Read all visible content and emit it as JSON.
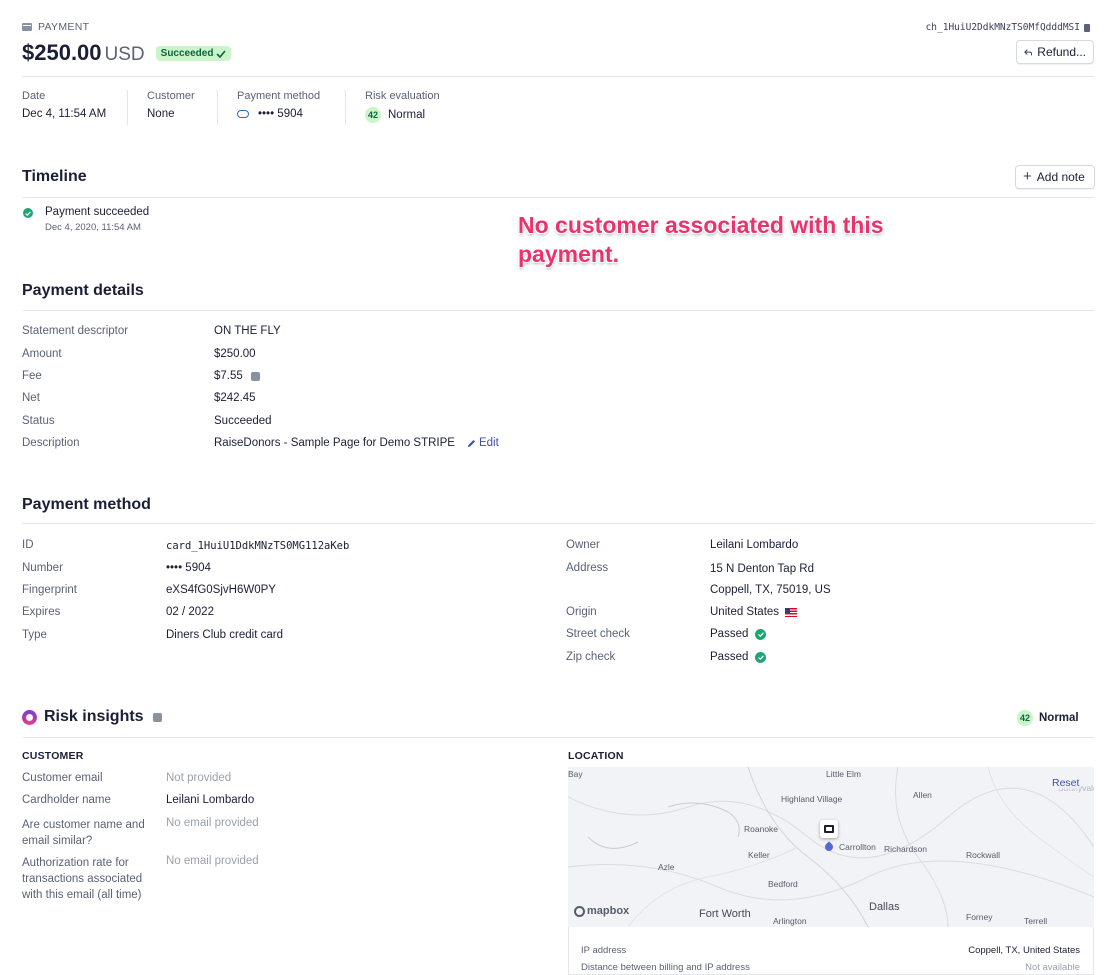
{
  "header": {
    "kicker": "PAYMENT",
    "amount": "$250.00",
    "currency": "USD",
    "status_badge": "Succeeded",
    "charge_id": "ch_1HuiU2DdkMNzTS0MfQdddMSI",
    "refund_label": "Refund..."
  },
  "summary": {
    "date": {
      "label": "Date",
      "value": "Dec 4, 11:54 AM"
    },
    "customer": {
      "label": "Customer",
      "value": "None"
    },
    "payment_method": {
      "label": "Payment method",
      "value": "•••• 5904"
    },
    "risk": {
      "label": "Risk evaluation",
      "score": "42",
      "value": "Normal"
    }
  },
  "timeline": {
    "title": "Timeline",
    "add_note_label": "Add note",
    "events": [
      {
        "title": "Payment succeeded",
        "time": "Dec 4, 2020, 11:54 AM"
      }
    ]
  },
  "annotation": "No customer associated with this payment.",
  "payment_details": {
    "title": "Payment details",
    "rows": [
      {
        "label": "Statement descriptor",
        "value": "ON THE FLY"
      },
      {
        "label": "Amount",
        "value": "$250.00"
      },
      {
        "label": "Fee",
        "value": "$7.55"
      },
      {
        "label": "Net",
        "value": "$242.45"
      },
      {
        "label": "Status",
        "value": "Succeeded"
      },
      {
        "label": "Description",
        "value": "RaiseDonors - Sample Page for Demo STRIPE"
      }
    ],
    "edit_label": "Edit"
  },
  "payment_method": {
    "title": "Payment method",
    "left": [
      {
        "label": "ID",
        "value": "card_1HuiU1DdkMNzTS0MG112aKeb"
      },
      {
        "label": "Number",
        "value": "•••• 5904"
      },
      {
        "label": "Fingerprint",
        "value": "eXS4fG0SjvH6W0PY"
      },
      {
        "label": "Expires",
        "value": "02 / 2022"
      },
      {
        "label": "Type",
        "value": "Diners Club credit card"
      }
    ],
    "right": [
      {
        "label": "Owner",
        "value": "Leilani Lombardo"
      },
      {
        "label": "Address",
        "value": "15 N Denton Tap Rd",
        "value2": "Coppell, TX, 75019, US"
      },
      {
        "label": "Origin",
        "value": "United States"
      },
      {
        "label": "Street check",
        "value": "Passed"
      },
      {
        "label": "Zip check",
        "value": "Passed"
      }
    ]
  },
  "risk_insights": {
    "title": "Risk insights",
    "score": "42",
    "level": "Normal",
    "customer_heading": "CUSTOMER",
    "location_heading": "LOCATION",
    "customer_rows": [
      {
        "label": "Customer email",
        "value": "Not provided"
      },
      {
        "label": "Cardholder name",
        "value": "Leilani Lombardo"
      },
      {
        "label": "Are customer name and email similar?",
        "value": "No email provided"
      },
      {
        "label": "Authorization rate for transactions associated with this email (all time)",
        "value": "No email provided"
      }
    ],
    "map": {
      "reset_label": "Reset",
      "attribution": "mapbox",
      "places": [
        "Bay",
        "Little Elm",
        "Highland Village",
        "Allen",
        "Roanoke",
        "Carrollton",
        "Richardson",
        "Keller",
        "Rockwall",
        "Azle",
        "Bedford",
        "Fort Worth",
        "Arlington",
        "Dallas",
        "Forney",
        "Terrell",
        "Sunnyvale"
      ]
    },
    "location_rows": [
      {
        "label": "IP address",
        "value": "Coppell, TX, United States"
      },
      {
        "label": "Distance between billing and IP address",
        "value": "Not available"
      }
    ]
  },
  "colors": {
    "success": "#1ea672",
    "annotation": "#e8336b",
    "link": "#3d4eac"
  }
}
